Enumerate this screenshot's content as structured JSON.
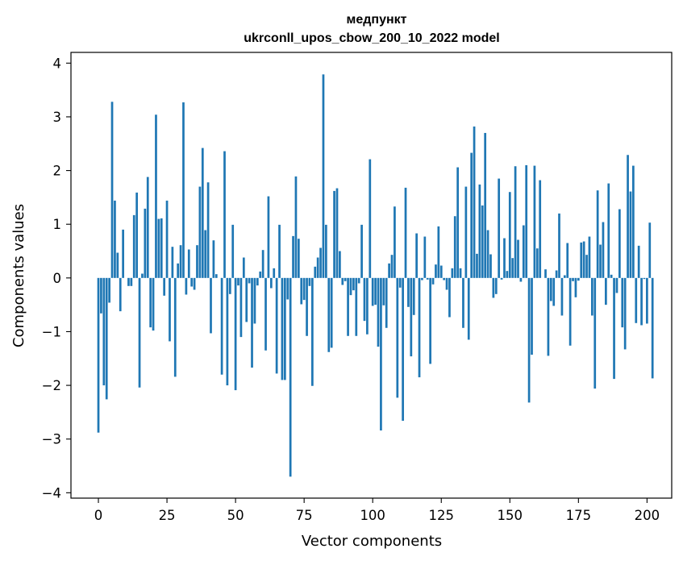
{
  "chart_data": {
    "type": "bar",
    "title_line1": "медпункт",
    "title_line2": "ukrconll_upos_cbow_200_10_2022 model",
    "xlabel": "Vector components",
    "ylabel": "Components values",
    "xlim": [
      -10,
      209
    ],
    "ylim": [
      -4.1,
      4.2
    ],
    "xticks": [
      0,
      25,
      50,
      75,
      100,
      125,
      150,
      175,
      200
    ],
    "yticks": [
      -4,
      -3,
      -2,
      -1,
      0,
      1,
      2,
      3,
      4
    ],
    "bar_color": "#1f77b4",
    "values": [
      -2.88,
      -0.66,
      -2.0,
      -2.26,
      -0.46,
      3.28,
      1.44,
      0.47,
      -0.62,
      0.9,
      0.0,
      -0.15,
      -0.15,
      1.17,
      1.59,
      -2.04,
      0.08,
      1.29,
      1.88,
      -0.92,
      -0.98,
      3.04,
      1.1,
      1.11,
      -0.33,
      1.44,
      -1.18,
      0.58,
      -1.84,
      0.27,
      0.61,
      3.27,
      -0.31,
      0.53,
      -0.16,
      -0.22,
      0.61,
      1.7,
      2.42,
      0.89,
      1.78,
      -1.03,
      0.7,
      0.07,
      0.0,
      -1.8,
      2.36,
      -2.0,
      -0.3,
      0.99,
      -2.09,
      -0.14,
      -1.1,
      0.38,
      -0.82,
      -0.1,
      -1.67,
      -0.85,
      -0.14,
      0.12,
      0.52,
      -1.35,
      1.52,
      -0.19,
      0.18,
      -1.78,
      0.99,
      -1.9,
      -1.9,
      -0.4,
      -3.7,
      0.78,
      1.89,
      0.73,
      -0.49,
      -0.41,
      -1.08,
      -0.15,
      -2.01,
      0.21,
      0.38,
      0.56,
      3.79,
      0.99,
      -1.38,
      -1.3,
      1.62,
      1.67,
      0.5,
      -0.13,
      -0.06,
      -1.08,
      -0.32,
      -0.23,
      -1.08,
      -0.1,
      0.99,
      -0.8,
      -1.05,
      2.21,
      -0.52,
      -0.5,
      -1.28,
      -2.84,
      -0.51,
      -0.93,
      0.27,
      0.43,
      1.33,
      -2.23,
      -0.18,
      -2.66,
      1.68,
      -0.54,
      -1.46,
      -0.69,
      0.83,
      -1.85,
      -0.04,
      0.77,
      -0.03,
      -1.6,
      -0.12,
      0.25,
      0.96,
      0.23,
      -0.04,
      -0.22,
      -0.73,
      0.18,
      1.15,
      2.06,
      0.18,
      -0.93,
      1.7,
      -1.15,
      2.33,
      2.82,
      0.45,
      1.74,
      1.35,
      2.7,
      0.89,
      0.44,
      -0.37,
      -0.3,
      1.85,
      -0.03,
      0.74,
      0.13,
      1.6,
      0.37,
      2.08,
      0.71,
      -0.07,
      0.98,
      2.1,
      -2.32,
      -1.43,
      2.09,
      0.55,
      1.82,
      0.0,
      0.16,
      -1.45,
      -0.43,
      -0.52,
      0.14,
      1.2,
      -0.7,
      0.05,
      0.65,
      -1.26,
      -0.06,
      -0.36,
      -0.05,
      0.66,
      0.68,
      0.43,
      0.77,
      -0.7,
      -2.06,
      1.63,
      0.62,
      1.04,
      -0.5,
      1.76,
      0.06,
      -1.88,
      -0.28,
      1.28,
      -0.92,
      -1.33,
      2.29,
      1.61,
      2.09,
      -0.84,
      0.6,
      -0.88,
      -0.02,
      -0.85,
      1.03,
      -1.87
    ]
  }
}
